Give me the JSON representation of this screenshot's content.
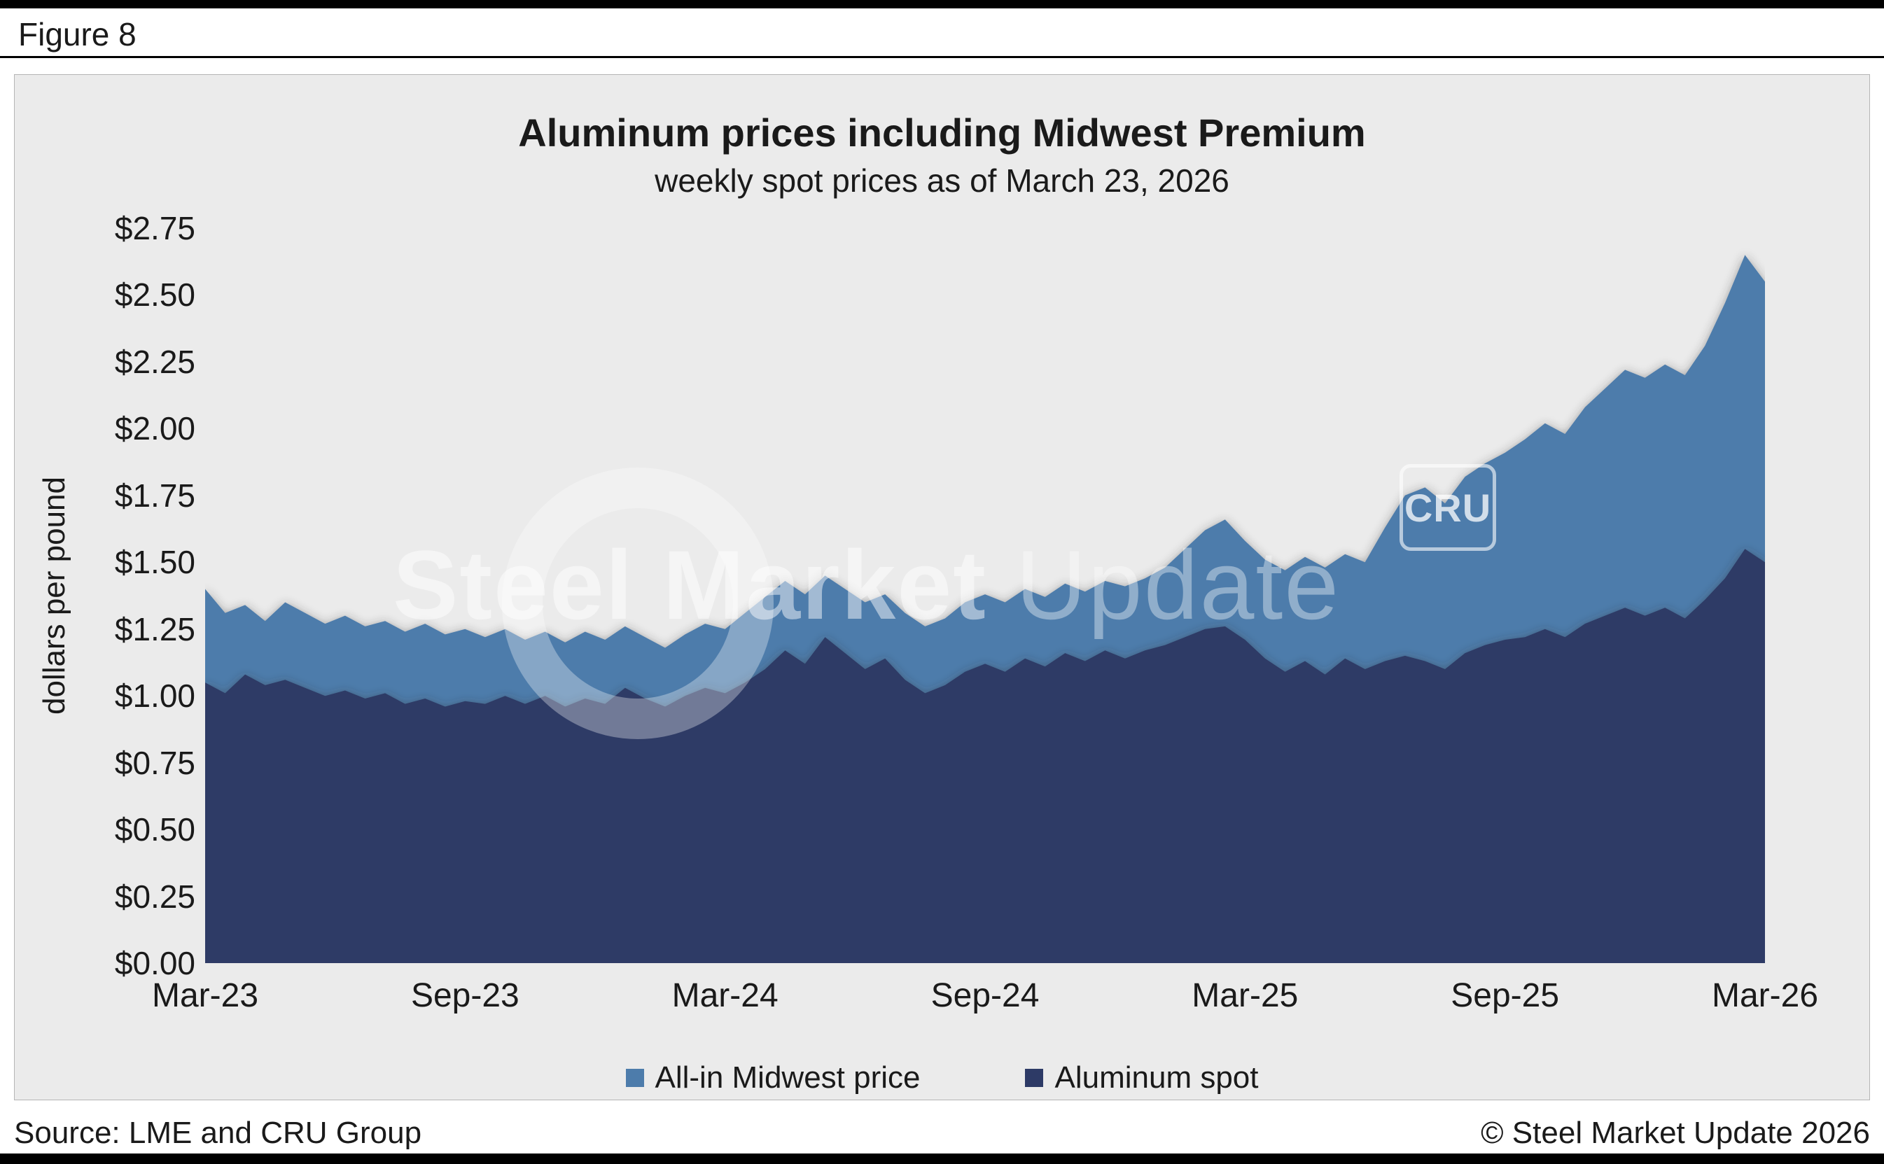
{
  "figure_label": "Figure 8",
  "watermark": {
    "brand_bold": "Steel Market",
    "brand_light": " Update",
    "cru_badge": "CRU"
  },
  "footer": {
    "source": "Source: LME and CRU Group",
    "copyright": "© Steel Market Update 2026"
  },
  "chart_data": {
    "type": "area",
    "title": "Aluminum prices including Midwest Premium",
    "subtitle": "weekly spot prices as of March 23, 2026",
    "ylabel": "dollars per pound",
    "ylim": [
      0,
      2.75
    ],
    "ytick_labels": [
      "$0.00",
      "$0.25",
      "$0.50",
      "$0.75",
      "$1.00",
      "$1.25",
      "$1.50",
      "$1.75",
      "$2.00",
      "$2.25",
      "$2.50",
      "$2.75"
    ],
    "xtick_labels": [
      "Mar-23",
      "Sep-23",
      "Mar-24",
      "Sep-24",
      "Mar-25",
      "Sep-25",
      "Mar-26"
    ],
    "grid": false,
    "legend_position": "bottom",
    "background": "#ebebeb",
    "series": [
      {
        "name": "All-in Midwest price",
        "color": "#4d7cab",
        "values": [
          1.4,
          1.31,
          1.34,
          1.28,
          1.35,
          1.31,
          1.27,
          1.3,
          1.26,
          1.28,
          1.24,
          1.27,
          1.23,
          1.25,
          1.22,
          1.25,
          1.21,
          1.24,
          1.2,
          1.24,
          1.21,
          1.26,
          1.22,
          1.18,
          1.23,
          1.27,
          1.25,
          1.31,
          1.37,
          1.43,
          1.38,
          1.45,
          1.4,
          1.35,
          1.38,
          1.31,
          1.26,
          1.29,
          1.35,
          1.38,
          1.35,
          1.4,
          1.37,
          1.42,
          1.39,
          1.43,
          1.41,
          1.44,
          1.48,
          1.55,
          1.62,
          1.66,
          1.58,
          1.51,
          1.47,
          1.52,
          1.48,
          1.53,
          1.5,
          1.63,
          1.75,
          1.78,
          1.72,
          1.82,
          1.87,
          1.91,
          1.96,
          2.02,
          1.98,
          2.08,
          2.15,
          2.22,
          2.19,
          2.24,
          2.2,
          2.31,
          2.47,
          2.65,
          2.55
        ]
      },
      {
        "name": "Aluminum spot",
        "color": "#2d3a66",
        "values": [
          1.05,
          1.01,
          1.08,
          1.04,
          1.06,
          1.03,
          1.0,
          1.02,
          0.99,
          1.01,
          0.97,
          0.99,
          0.96,
          0.98,
          0.97,
          1.0,
          0.97,
          1.0,
          0.96,
          0.99,
          0.97,
          1.03,
          0.99,
          0.96,
          1.0,
          1.03,
          1.01,
          1.05,
          1.1,
          1.17,
          1.12,
          1.22,
          1.16,
          1.1,
          1.14,
          1.06,
          1.01,
          1.04,
          1.09,
          1.12,
          1.09,
          1.14,
          1.11,
          1.16,
          1.13,
          1.17,
          1.14,
          1.17,
          1.19,
          1.22,
          1.25,
          1.26,
          1.21,
          1.14,
          1.09,
          1.13,
          1.08,
          1.14,
          1.1,
          1.13,
          1.15,
          1.13,
          1.1,
          1.16,
          1.19,
          1.21,
          1.22,
          1.25,
          1.22,
          1.27,
          1.3,
          1.33,
          1.3,
          1.33,
          1.29,
          1.36,
          1.44,
          1.55,
          1.5
        ]
      }
    ]
  }
}
